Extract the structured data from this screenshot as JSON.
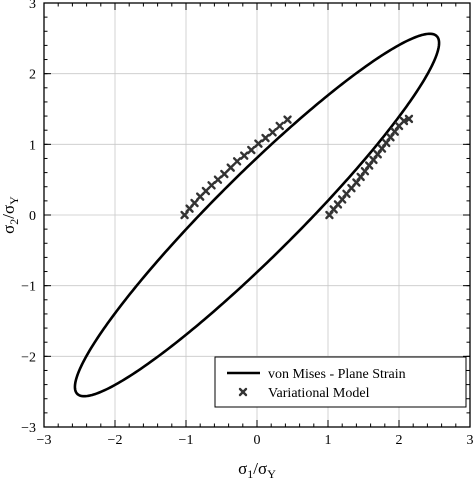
{
  "chart_data": {
    "type": "scatter",
    "title": "",
    "xlabel": {
      "main": "σ",
      "sub1": "1",
      "slash": "/σ",
      "sub2": "Y"
    },
    "ylabel": {
      "main": "σ",
      "sub1": "2",
      "slash": "/σ",
      "sub2": "Y"
    },
    "xlim": [
      -3,
      3
    ],
    "ylim": [
      -3,
      3
    ],
    "xticks": [
      -3,
      -2,
      -1,
      0,
      1,
      2,
      3
    ],
    "yticks": [
      -3,
      -2,
      -1,
      0,
      1,
      2,
      3
    ],
    "xtick_labels": [
      "−3",
      "−2",
      "−1",
      "0",
      "1",
      "2",
      "3"
    ],
    "ytick_labels": [
      "−3",
      "−2",
      "−1",
      "0",
      "1",
      "2",
      "3"
    ],
    "grid": true,
    "minor_ticks_per_interval": 5,
    "legend": {
      "placement": "bottom-right",
      "entries": [
        {
          "name": "von Mises - Plane Strain",
          "style": "line"
        },
        {
          "name": "Variational Model",
          "style": "x-marker"
        }
      ]
    },
    "series": [
      {
        "name": "von Mises - Plane Strain",
        "kind": "ellipse",
        "center": [
          0,
          0
        ],
        "semi_major": 3.58,
        "semi_minor": 0.58,
        "angle_deg": 45,
        "color": "#000000"
      },
      {
        "name": "Variational Model",
        "kind": "points",
        "color": "#333333",
        "points": [
          [
            -1.02,
            0.0
          ],
          [
            -0.95,
            0.09
          ],
          [
            -0.88,
            0.17
          ],
          [
            -0.8,
            0.26
          ],
          [
            -0.72,
            0.34
          ],
          [
            -0.64,
            0.42
          ],
          [
            -0.55,
            0.5
          ],
          [
            -0.46,
            0.58
          ],
          [
            -0.37,
            0.67
          ],
          [
            -0.28,
            0.76
          ],
          [
            -0.18,
            0.84
          ],
          [
            -0.08,
            0.92
          ],
          [
            0.02,
            1.01
          ],
          [
            0.12,
            1.09
          ],
          [
            0.22,
            1.17
          ],
          [
            0.32,
            1.26
          ],
          [
            0.43,
            1.35
          ],
          [
            1.02,
            0.0
          ],
          [
            1.08,
            0.08
          ],
          [
            1.14,
            0.15
          ],
          [
            1.2,
            0.22
          ],
          [
            1.26,
            0.3
          ],
          [
            1.33,
            0.38
          ],
          [
            1.4,
            0.46
          ],
          [
            1.46,
            0.54
          ],
          [
            1.52,
            0.62
          ],
          [
            1.58,
            0.7
          ],
          [
            1.64,
            0.78
          ],
          [
            1.7,
            0.86
          ],
          [
            1.76,
            0.94
          ],
          [
            1.82,
            1.02
          ],
          [
            1.88,
            1.1
          ],
          [
            1.94,
            1.18
          ],
          [
            2.0,
            1.26
          ],
          [
            2.07,
            1.33
          ],
          [
            2.14,
            1.36
          ]
        ]
      }
    ]
  }
}
